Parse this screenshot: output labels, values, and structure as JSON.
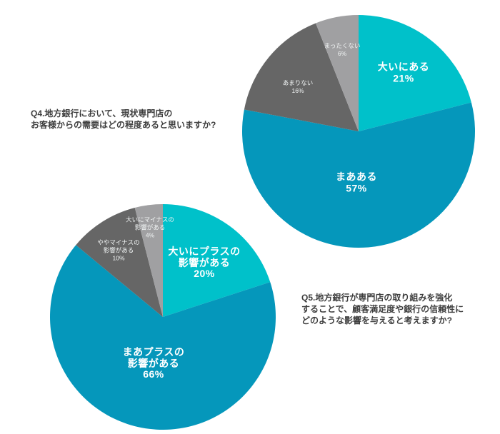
{
  "page": {
    "background": "#ffffff",
    "text_color": "#3d3d3d"
  },
  "questions": [
    {
      "id": "Q4",
      "lines": [
        "Q4.地方銀行において、現状専門店の",
        "お客様からの需要はどの程度あると思いますか?"
      ]
    },
    {
      "id": "Q5",
      "lines": [
        "Q5.地方銀行が専門店の取り組みを強化",
        "することで、顧客満足度や銀行の信頼性に",
        "どのような影響を与えると考えますか?"
      ]
    }
  ],
  "chart_data": [
    {
      "type": "pie",
      "question": "Q4.地方銀行において、現状専門店のお客様からの需要はどの程度あると思いますか?",
      "categories": [
        "大いにある",
        "まあある",
        "あまりない",
        "まったくない"
      ],
      "values": [
        21,
        57,
        16,
        6
      ],
      "colors": [
        "#00c1ca",
        "#0597bb",
        "#666666",
        "#a0a0a2"
      ],
      "start_angle": 0,
      "direction": "clockwise",
      "label_position": "inside",
      "slices": [
        {
          "label_lines": [
            "大いにある"
          ],
          "value_label": "21%"
        },
        {
          "label_lines": [
            "まあある"
          ],
          "value_label": "57%"
        },
        {
          "label_lines": [
            "あまりない"
          ],
          "value_label": "16%"
        },
        {
          "label_lines": [
            "まったくない"
          ],
          "value_label": "6%"
        }
      ]
    },
    {
      "type": "pie",
      "question": "Q5.地方銀行が専門店の取り組みを強化することで、顧客満足度や銀行の信頼性にどのような影響を与えると考えますか?",
      "categories": [
        "大いにプラスの影響がある",
        "まあプラスの影響がある",
        "ややマイナスの影響がある",
        "大いにマイナスの影響がある"
      ],
      "values": [
        20,
        66,
        10,
        4
      ],
      "colors": [
        "#00c1ca",
        "#0597bb",
        "#666666",
        "#a0a0a2"
      ],
      "start_angle": 0,
      "direction": "clockwise",
      "label_position": "inside",
      "slices": [
        {
          "label_lines": [
            "大いにプラスの",
            "影響がある"
          ],
          "value_label": "20%"
        },
        {
          "label_lines": [
            "まあプラスの",
            "影響がある"
          ],
          "value_label": "66%"
        },
        {
          "label_lines": [
            "ややマイナスの",
            "影響がある"
          ],
          "value_label": "10%"
        },
        {
          "label_lines": [
            "大いにマイナスの",
            "影響がある"
          ],
          "value_label": "4%"
        }
      ]
    }
  ]
}
